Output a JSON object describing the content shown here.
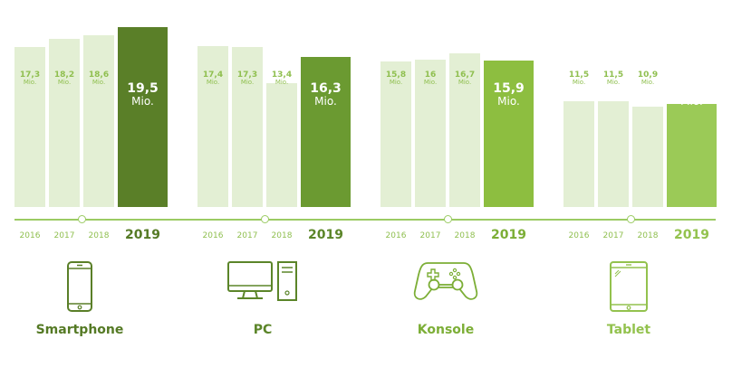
{
  "chart_data": {
    "type": "bar",
    "title": "",
    "unit": "Mio.",
    "categories": [
      "2016",
      "2017",
      "2018",
      "2019"
    ],
    "ylim": [
      0,
      20
    ],
    "grid": false,
    "series": [
      {
        "name": "Smartphone",
        "icon": "smartphone-icon",
        "values": [
          17.3,
          18.2,
          18.6,
          19.5
        ],
        "labels": [
          "17,3",
          "18,2",
          "18,6",
          "19,5"
        ],
        "color": "#5a7f28",
        "label_color": "#557a25"
      },
      {
        "name": "PC",
        "icon": "desktop-pc-icon",
        "values": [
          17.4,
          17.3,
          13.4,
          16.3
        ],
        "labels": [
          "17,4",
          "17,3",
          "13,4",
          "16,3"
        ],
        "color": "#6b9a31",
        "label_color": "#5b8529"
      },
      {
        "name": "Konsole",
        "icon": "gamepad-icon",
        "values": [
          15.8,
          16,
          16.7,
          15.9
        ],
        "labels": [
          "15,8",
          "16",
          "16,7",
          "15,9"
        ],
        "color": "#8dbe40",
        "label_color": "#7cae36"
      },
      {
        "name": "Tablet",
        "icon": "tablet-icon",
        "values": [
          11.5,
          11.5,
          10.9,
          11.2
        ],
        "labels": [
          "11,5",
          "11,5",
          "10,9",
          "11,2"
        ],
        "color": "#9bca57",
        "label_color": "#93c24e"
      }
    ],
    "light_bar_color": "#e3efd4",
    "light_label_color": "#8fbf4f",
    "line_color": "#9bcb63"
  }
}
